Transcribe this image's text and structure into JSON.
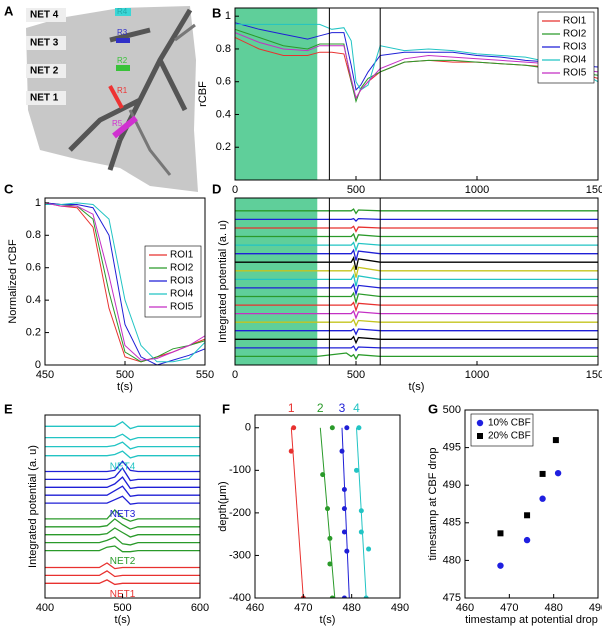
{
  "panel_a": {
    "label": "A",
    "nets": [
      "NET 4",
      "NET 3",
      "NET 2",
      "NET 1"
    ],
    "rois": [
      "R1",
      "R2",
      "R3",
      "R4",
      "R5"
    ]
  },
  "chart_data": [
    {
      "type": "line",
      "label": "B",
      "ylabel": "rCBF",
      "x": [
        0,
        100,
        200,
        300,
        350,
        400,
        450,
        480,
        500,
        520,
        550,
        600,
        700,
        800,
        900,
        1000,
        1100,
        1200,
        1300,
        1400,
        1500
      ],
      "xlim": [
        0,
        1500
      ],
      "xticks": [
        0,
        500,
        1000,
        1500
      ],
      "ylim": [
        0,
        1.05
      ],
      "yticks": [
        0.2,
        0.4,
        0.6,
        0.8,
        1
      ],
      "shade": [
        0,
        340
      ],
      "shade_color": "#5fcf9a",
      "vlines": [
        390,
        600
      ],
      "legend": "upper right",
      "series": [
        {
          "name": "ROI1",
          "color": "#e8312f",
          "values": [
            0.87,
            0.8,
            0.76,
            0.76,
            0.78,
            0.78,
            0.77,
            0.6,
            0.5,
            0.55,
            0.6,
            0.66,
            0.72,
            0.73,
            0.72,
            0.72,
            0.71,
            0.7,
            0.69,
            0.66,
            0.62
          ]
        },
        {
          "name": "ROI2",
          "color": "#2a9a2a",
          "values": [
            0.92,
            0.87,
            0.82,
            0.8,
            0.83,
            0.83,
            0.83,
            0.6,
            0.48,
            0.56,
            0.62,
            0.66,
            0.72,
            0.73,
            0.73,
            0.72,
            0.71,
            0.7,
            0.68,
            0.66,
            0.64
          ]
        },
        {
          "name": "ROI3",
          "color": "#1f1fd6",
          "values": [
            0.96,
            0.92,
            0.89,
            0.86,
            0.88,
            0.9,
            0.9,
            0.7,
            0.55,
            0.58,
            0.66,
            0.76,
            0.78,
            0.78,
            0.78,
            0.76,
            0.75,
            0.73,
            0.72,
            0.7,
            0.69
          ]
        },
        {
          "name": "ROI4",
          "color": "#22c4c4",
          "values": [
            0.95,
            0.95,
            0.95,
            0.95,
            0.95,
            0.92,
            0.93,
            0.85,
            0.6,
            0.55,
            0.58,
            0.82,
            0.79,
            0.8,
            0.79,
            0.77,
            0.76,
            0.75,
            0.72,
            0.68,
            0.6
          ]
        },
        {
          "name": "ROI5",
          "color": "#c42fc4",
          "values": [
            0.9,
            0.84,
            0.8,
            0.79,
            0.82,
            0.82,
            0.82,
            0.62,
            0.5,
            0.55,
            0.6,
            0.68,
            0.74,
            0.76,
            0.75,
            0.74,
            0.73,
            0.72,
            0.71,
            0.68,
            0.66
          ]
        }
      ]
    },
    {
      "type": "line",
      "label": "C",
      "xlabel": "t(s)",
      "ylabel": "Normalized rCBF",
      "x": [
        450,
        460,
        470,
        480,
        490,
        500,
        510,
        520,
        530,
        540,
        550
      ],
      "xlim": [
        450,
        550
      ],
      "xticks": [
        450,
        500,
        550
      ],
      "ylim": [
        0,
        1.03
      ],
      "yticks": [
        0,
        0.2,
        0.4,
        0.6,
        0.8,
        1
      ],
      "legend": "right",
      "series": [
        {
          "name": "ROI1",
          "color": "#e8312f",
          "values": [
            1,
            0.98,
            0.97,
            0.85,
            0.35,
            0.05,
            0.02,
            0.05,
            0.08,
            0.12,
            0.16
          ]
        },
        {
          "name": "ROI2",
          "color": "#2a9a2a",
          "values": [
            1,
            0.99,
            0.98,
            0.9,
            0.45,
            0.08,
            0.02,
            0.05,
            0.1,
            0.12,
            0.15
          ]
        },
        {
          "name": "ROI3",
          "color": "#1f1fd6",
          "values": [
            1,
            0.99,
            0.99,
            0.97,
            0.8,
            0.25,
            0.05,
            0,
            0.03,
            0.06,
            0.1
          ]
        },
        {
          "name": "ROI4",
          "color": "#22c4c4",
          "values": [
            0.99,
            0.99,
            1,
            0.99,
            0.9,
            0.4,
            0.12,
            0.02,
            0.02,
            0.04,
            0.14
          ]
        },
        {
          "name": "ROI5",
          "color": "#c42fc4",
          "values": [
            1,
            0.98,
            0.98,
            0.93,
            0.55,
            0.12,
            0.03,
            0.04,
            0.08,
            0.12,
            0.18
          ]
        }
      ]
    },
    {
      "type": "traces",
      "label": "D",
      "xlabel": "t(s)",
      "ylabel": "Integrated potential (a. u)",
      "x": [
        0,
        340,
        460,
        480,
        490,
        500,
        510,
        600,
        1500
      ],
      "xlim": [
        0,
        1500
      ],
      "xticks": [
        0,
        500,
        1000,
        1500
      ],
      "ylim": [
        -1,
        18.5
      ],
      "shade": [
        0,
        340
      ],
      "shade_color": "#5fcf9a",
      "vlines": [
        390,
        600
      ],
      "series": [
        {
          "color": "#2a9a2a",
          "values": [
            17,
            17,
            17,
            17,
            17.2,
            16.7,
            17.1,
            17,
            17
          ]
        },
        {
          "color": "#1f1fd6",
          "values": [
            16,
            16,
            16,
            16,
            16.1,
            15.8,
            16.1,
            16,
            16
          ]
        },
        {
          "color": "#e8312f",
          "values": [
            15,
            15,
            15,
            15,
            15.2,
            14.6,
            15.1,
            15,
            15
          ]
        },
        {
          "color": "#2a9a2a",
          "values": [
            14,
            14,
            14,
            14,
            14.3,
            13.5,
            14.2,
            14,
            14
          ]
        },
        {
          "color": "#22c4c4",
          "values": [
            13,
            13,
            13,
            13,
            13.3,
            12.4,
            13.2,
            13,
            13
          ]
        },
        {
          "color": "#1f1fd6",
          "values": [
            12,
            12,
            12,
            12,
            12.4,
            11.2,
            12.3,
            12,
            12
          ]
        },
        {
          "color": "#000000",
          "values": [
            11,
            11,
            11,
            11,
            11.5,
            10.1,
            11.4,
            11,
            11
          ]
        },
        {
          "color": "#c4c41f",
          "values": [
            10,
            10,
            10,
            10,
            10.5,
            9.2,
            10.4,
            10,
            10
          ]
        },
        {
          "color": "#22c4c4",
          "values": [
            9,
            9,
            9,
            9,
            9.5,
            8.2,
            9.4,
            9,
            9
          ]
        },
        {
          "color": "#1f1fd6",
          "values": [
            8,
            8,
            8,
            8,
            8.4,
            7.3,
            8.3,
            8,
            8
          ]
        },
        {
          "color": "#2a9a2a",
          "values": [
            7,
            7,
            7,
            7,
            7.4,
            6.3,
            7.3,
            7,
            7
          ]
        },
        {
          "color": "#e8312f",
          "values": [
            6,
            6,
            6,
            6,
            6.3,
            5.4,
            6.2,
            6,
            6
          ]
        },
        {
          "color": "#c42fc4",
          "values": [
            5,
            5,
            5,
            5,
            5.3,
            4.5,
            5.2,
            5,
            5
          ]
        },
        {
          "color": "#c4c41f",
          "values": [
            4,
            4,
            4,
            4,
            4.3,
            3.6,
            4.2,
            4,
            4
          ]
        },
        {
          "color": "#1f1fd6",
          "values": [
            3,
            3,
            3,
            3,
            3.2,
            2.6,
            3.2,
            3,
            3
          ]
        },
        {
          "color": "#000000",
          "values": [
            2,
            2,
            2,
            2,
            2.3,
            1.6,
            2.2,
            2,
            2
          ]
        },
        {
          "color": "#1f1fd6",
          "values": [
            1,
            1,
            1,
            1,
            1.2,
            0.7,
            1.1,
            1,
            1
          ]
        },
        {
          "color": "#2a9a2a",
          "values": [
            0,
            0,
            0.4,
            0,
            0.2,
            -0.3,
            0.2,
            0,
            0
          ]
        }
      ]
    },
    {
      "type": "traces",
      "label": "E",
      "xlabel": "t(s)",
      "ylabel": "Integrated potential (a. u)",
      "x": [
        400,
        470,
        480,
        490,
        500,
        510,
        520,
        600
      ],
      "xlim": [
        400,
        600
      ],
      "xticks": [
        400,
        500,
        600
      ],
      "ylim": [
        0.8,
        17
      ],
      "series": [
        {
          "name": "NET4",
          "color": "#22c4c4",
          "traces": [
            [
              16,
              16,
              16,
              16,
              16.4,
              15.8,
              16,
              16
            ],
            [
              15,
              15,
              15,
              15,
              15.3,
              14.8,
              15,
              15
            ],
            [
              14.2,
              14.2,
              14.2,
              14.3,
              14.6,
              14,
              14.2,
              14.2
            ],
            [
              13.4,
              13.4,
              13.4,
              13.5,
              13.8,
              13.2,
              13.4,
              13.4
            ]
          ]
        },
        {
          "name": "NET3",
          "color": "#1f1fd6",
          "traces": [
            [
              12,
              12,
              12,
              12.1,
              12.9,
              12.1,
              12,
              12
            ],
            [
              11.3,
              11.3,
              11.3,
              11.5,
              12.3,
              11.2,
              11.3,
              11.3
            ],
            [
              10.6,
              10.6,
              10.6,
              10.9,
              11.5,
              10.5,
              10.6,
              10.6
            ],
            [
              9.9,
              9.9,
              9.9,
              10.3,
              10.7,
              9.8,
              9.9,
              9.9
            ],
            [
              9.2,
              9.2,
              9.2,
              9.5,
              9.8,
              9.1,
              9.2,
              9.2
            ]
          ]
        },
        {
          "name": "NET2",
          "color": "#2a9a2a",
          "traces": [
            [
              7.8,
              7.8,
              7.8,
              8.6,
              7.9,
              7.6,
              7.8,
              7.8
            ],
            [
              7.1,
              7.1,
              7.2,
              7.8,
              7.3,
              6.9,
              7.1,
              7.1
            ],
            [
              6.4,
              6.4,
              6.5,
              7,
              6.6,
              6.2,
              6.4,
              6.4
            ],
            [
              5.7,
              5.7,
              5.9,
              6.2,
              5.6,
              5.5,
              5.7,
              5.7
            ],
            [
              5,
              5,
              5.3,
              5.4,
              4.9,
              4.9,
              5,
              5
            ]
          ]
        },
        {
          "name": "NET1",
          "color": "#e8312f",
          "traces": [
            [
              3.5,
              3.5,
              3.9,
              3.4,
              3.5,
              3.5,
              3.5,
              3.5
            ],
            [
              2.8,
              2.8,
              3.2,
              2.7,
              2.8,
              2.8,
              2.8,
              2.8
            ],
            [
              2.1,
              2.1,
              2.4,
              2,
              2.1,
              2.1,
              2.1,
              2.1
            ]
          ]
        }
      ]
    },
    {
      "type": "fit",
      "label": "F",
      "xlabel": "t(s)",
      "ylabel": "depth(μm)",
      "xlim": [
        460,
        490
      ],
      "xticks": [
        460,
        470,
        480,
        490
      ],
      "ylim": [
        -400,
        30
      ],
      "yticks": [
        0,
        -100,
        -200,
        -300,
        -400
      ],
      "series": [
        {
          "name": "1",
          "color": "#e8312f",
          "x": [
            468,
            467.5,
            470
          ],
          "values": [
            0,
            -55,
            -400
          ],
          "fit_x": [
            467.5,
            470
          ],
          "fit_values": [
            0,
            -400
          ]
        },
        {
          "name": "2",
          "color": "#2a9a2a",
          "x": [
            476,
            474,
            475,
            475.5,
            475.5,
            476
          ],
          "values": [
            0,
            -110,
            -190,
            -260,
            -320,
            -400
          ],
          "fit_x": [
            473.5,
            476.5
          ],
          "fit_values": [
            0,
            -400
          ]
        },
        {
          "name": "3",
          "color": "#1f1fd6",
          "x": [
            479,
            478,
            478.5,
            478.5,
            478.5,
            479,
            478.5
          ],
          "values": [
            0,
            -55,
            -145,
            -190,
            -245,
            -290,
            -400
          ],
          "fit_x": [
            478,
            479.5
          ],
          "fit_values": [
            0,
            -400
          ]
        },
        {
          "name": "4",
          "color": "#22c4c4",
          "x": [
            481.5,
            481,
            482,
            482,
            483.5,
            483
          ],
          "values": [
            0,
            -100,
            -195,
            -245,
            -285,
            -400
          ],
          "fit_x": [
            481,
            483
          ],
          "fit_values": [
            0,
            -400
          ]
        }
      ]
    },
    {
      "type": "scatter",
      "label": "G",
      "xlabel": "timestamp at potential drop",
      "ylabel": "timestamp at CBF drop",
      "xlim": [
        460,
        490
      ],
      "xticks": [
        460,
        470,
        480,
        490
      ],
      "ylim": [
        475,
        500
      ],
      "yticks": [
        475,
        480,
        485,
        490,
        495,
        500
      ],
      "legend": "upper left",
      "series": [
        {
          "name": "10% CBF",
          "color": "#1f1fe0",
          "marker": "circle",
          "x": [
            468,
            474,
            477.5,
            481
          ],
          "values": [
            479.3,
            482.7,
            488.2,
            491.6
          ]
        },
        {
          "name": "20% CBF",
          "color": "#000000",
          "marker": "square",
          "x": [
            468,
            474,
            477.5,
            480.5
          ],
          "values": [
            483.6,
            486,
            491.5,
            496
          ]
        }
      ]
    }
  ]
}
